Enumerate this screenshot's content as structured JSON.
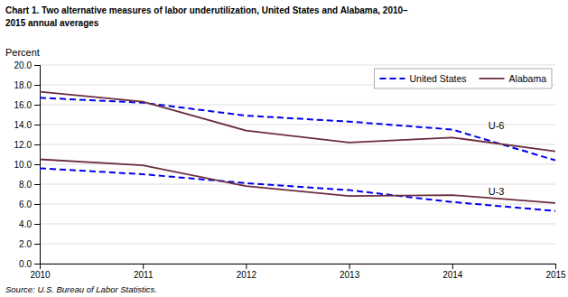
{
  "chart_data": {
    "type": "line",
    "title": [
      "Chart 1. Two alternative measures of labor underutilization, United States and Alabama, 2010–",
      "2015 annual averages"
    ],
    "y_label": "Percent",
    "source": "Source: U.S. Bureau of Labor Statistics.",
    "x": [
      2010,
      2011,
      2012,
      2013,
      2014,
      2015
    ],
    "series": [
      {
        "name": "United States",
        "color": "#0000ee",
        "line_style": "dashed",
        "values": [
          16.7,
          16.2,
          14.9,
          14.3,
          13.5,
          10.4
        ]
      },
      {
        "name": "Alabama",
        "color": "#6b2d3e",
        "line_style": "solid",
        "values": [
          17.3,
          16.3,
          13.4,
          12.2,
          12.7,
          11.3
        ]
      },
      {
        "name": "United States",
        "color": "#0000ee",
        "line_style": "dashed",
        "values": [
          9.6,
          9.0,
          8.1,
          7.4,
          6.2,
          5.3
        ]
      },
      {
        "name": "Alabama",
        "color": "#6b2d3e",
        "line_style": "solid",
        "values": [
          10.5,
          9.9,
          7.8,
          6.8,
          6.9,
          6.1
        ]
      }
    ],
    "annotations": [
      {
        "text": "U-6",
        "x": 2014.35,
        "y": 13.9
      },
      {
        "text": "U-3",
        "x": 2014.35,
        "y": 7.3
      }
    ],
    "xlim": [
      2010,
      2015
    ],
    "xticks": [
      2010,
      2011,
      2012,
      2013,
      2014,
      2015
    ],
    "ylim": [
      0.0,
      20.0
    ],
    "yticks": [
      {
        "value": 0,
        "label": "0.0"
      },
      {
        "value": 2,
        "label": "2.0"
      },
      {
        "value": 4,
        "label": "4.0"
      },
      {
        "value": 6,
        "label": "6.0"
      },
      {
        "value": 8,
        "label": "8.0"
      },
      {
        "value": 10,
        "label": "10.0"
      },
      {
        "value": 12,
        "label": "12.0"
      },
      {
        "value": 14,
        "label": "14.0"
      },
      {
        "value": 16,
        "label": "16.0"
      },
      {
        "value": 18,
        "label": "18.0"
      },
      {
        "value": 20,
        "label": "20.0"
      }
    ],
    "grid": true,
    "legend": "upper right"
  }
}
